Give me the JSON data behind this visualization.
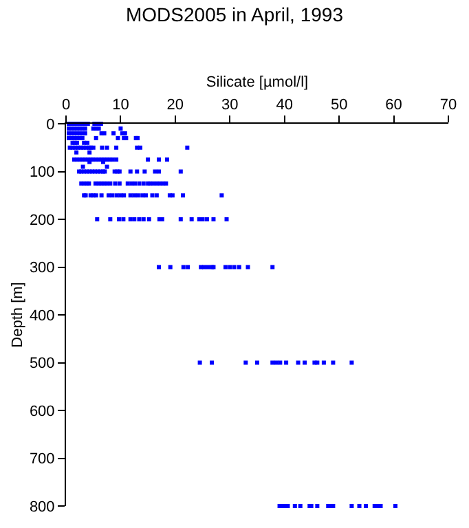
{
  "chart_data": {
    "type": "scatter",
    "title": "MODS2005 in April, 1993",
    "xlabel": "Silicate [µmol/l]",
    "ylabel": "Depth [m]",
    "x": [
      0.5,
      1,
      1.5,
      2,
      2.5,
      3,
      3.5,
      4,
      5.2,
      5.8,
      6.4,
      0.5,
      1,
      1.5,
      2,
      2.5,
      3,
      3.5,
      5,
      5.5,
      6,
      10,
      0.5,
      1,
      1.5,
      2,
      2.5,
      3,
      3.5,
      6.5,
      7,
      8.7,
      10.3,
      10.8,
      0.5,
      1,
      1.5,
      2,
      2.5,
      3,
      5.5,
      9.5,
      10.6,
      11,
      12.8,
      13.1,
      1.2,
      1.6,
      2,
      3.3,
      3.9,
      0.7,
      1.2,
      1.7,
      2.2,
      2.7,
      3.2,
      3.7,
      4.2,
      4.5,
      5,
      6.6,
      7.5,
      9.2,
      13,
      13.6,
      22.2,
      1.9,
      4.3,
      1.5,
      2,
      2.5,
      3,
      3.5,
      4,
      4.5,
      4.9,
      5.4,
      6,
      6.5,
      7,
      7.5,
      8,
      8.5,
      9.2,
      15,
      17,
      18.5,
      4.3,
      6.8,
      3.1,
      7.5,
      2.4,
      2.8,
      3.3,
      3.8,
      4.3,
      4.8,
      5.3,
      5.8,
      6.3,
      6.8,
      7.1,
      8.9,
      9.4,
      9.8,
      11.8,
      13,
      14.4,
      16.3,
      17,
      21,
      2.8,
      3.3,
      3.8,
      4.2,
      5.4,
      6,
      6.5,
      7,
      7.5,
      8.1,
      9,
      9.8,
      11.3,
      12,
      12.6,
      13.4,
      14.2,
      15,
      15.4,
      16,
      16.6,
      17.2,
      17.8,
      18.3,
      3.3,
      3.6,
      4.5,
      5,
      5.5,
      6.5,
      7.8,
      8.5,
      9.3,
      10,
      10.6,
      11.8,
      12.5,
      13.2,
      14,
      14.6,
      15.8,
      16.6,
      19,
      19.5,
      21.4,
      28.5,
      5.7,
      8.1,
      9.7,
      10.5,
      11.8,
      12.5,
      13.4,
      14.2,
      15.2,
      17.1,
      17.6,
      21,
      23,
      24.4,
      25,
      25.8,
      27,
      29.4,
      17,
      19.1,
      21.5,
      22.3,
      24.7,
      25.3,
      26,
      26.7,
      27,
      29.2,
      30,
      30.8,
      31.7,
      33.3,
      37.8,
      24.5,
      26.7,
      32.9,
      35,
      37.8,
      38.5,
      39.2,
      40.3,
      42.5,
      43.7,
      45.5,
      46,
      47.2,
      48.9,
      52.3,
      39.1,
      39.6,
      40.1,
      40.6,
      41.9,
      42.9,
      44.6,
      44.9,
      46,
      48,
      48.5,
      48.9,
      52.3,
      53.7,
      54.9,
      56.5,
      57,
      57.6,
      60.3
    ],
    "values": [
      0,
      0,
      0,
      0,
      0,
      0,
      0,
      0,
      0,
      0,
      0,
      10,
      10,
      10,
      10,
      10,
      10,
      10,
      10,
      10,
      10,
      10,
      20,
      20,
      20,
      20,
      20,
      20,
      20,
      20,
      20,
      20,
      20,
      20,
      30,
      30,
      30,
      30,
      30,
      30,
      30,
      30,
      30,
      30,
      30,
      30,
      40,
      40,
      40,
      40,
      40,
      50,
      50,
      50,
      50,
      50,
      50,
      50,
      50,
      50,
      50,
      50,
      50,
      50,
      50,
      50,
      50,
      60,
      60,
      75,
      75,
      75,
      75,
      75,
      75,
      75,
      75,
      75,
      75,
      75,
      75,
      75,
      75,
      75,
      75,
      75,
      75,
      75,
      80,
      80,
      90,
      90,
      100,
      100,
      100,
      100,
      100,
      100,
      100,
      100,
      100,
      100,
      100,
      100,
      100,
      100,
      100,
      100,
      100,
      100,
      100,
      100,
      125,
      125,
      125,
      125,
      125,
      125,
      125,
      125,
      125,
      125,
      125,
      125,
      125,
      125,
      125,
      125,
      125,
      125,
      125,
      125,
      125,
      125,
      125,
      125,
      150,
      150,
      150,
      150,
      150,
      150,
      150,
      150,
      150,
      150,
      150,
      150,
      150,
      150,
      150,
      150,
      150,
      150,
      150,
      150,
      150,
      150,
      200,
      200,
      200,
      200,
      200,
      200,
      200,
      200,
      200,
      200,
      200,
      200,
      200,
      200,
      200,
      200,
      200,
      200,
      300,
      300,
      300,
      300,
      300,
      300,
      300,
      300,
      300,
      300,
      300,
      300,
      300,
      300,
      300,
      500,
      500,
      500,
      500,
      500,
      500,
      500,
      500,
      500,
      500,
      500,
      500,
      500,
      500,
      500,
      800,
      800,
      800,
      800,
      800,
      800,
      800,
      800,
      800,
      800,
      800,
      800,
      800,
      800,
      800,
      800,
      800,
      800,
      800
    ],
    "color": "#0000ff",
    "marker": "square",
    "xlim": [
      0,
      70
    ],
    "xticks": [
      0,
      10,
      20,
      30,
      40,
      50,
      60,
      70
    ],
    "ylim": [
      800,
      0
    ],
    "yticks": [
      0,
      100,
      200,
      300,
      400,
      500,
      600,
      700,
      800
    ]
  }
}
